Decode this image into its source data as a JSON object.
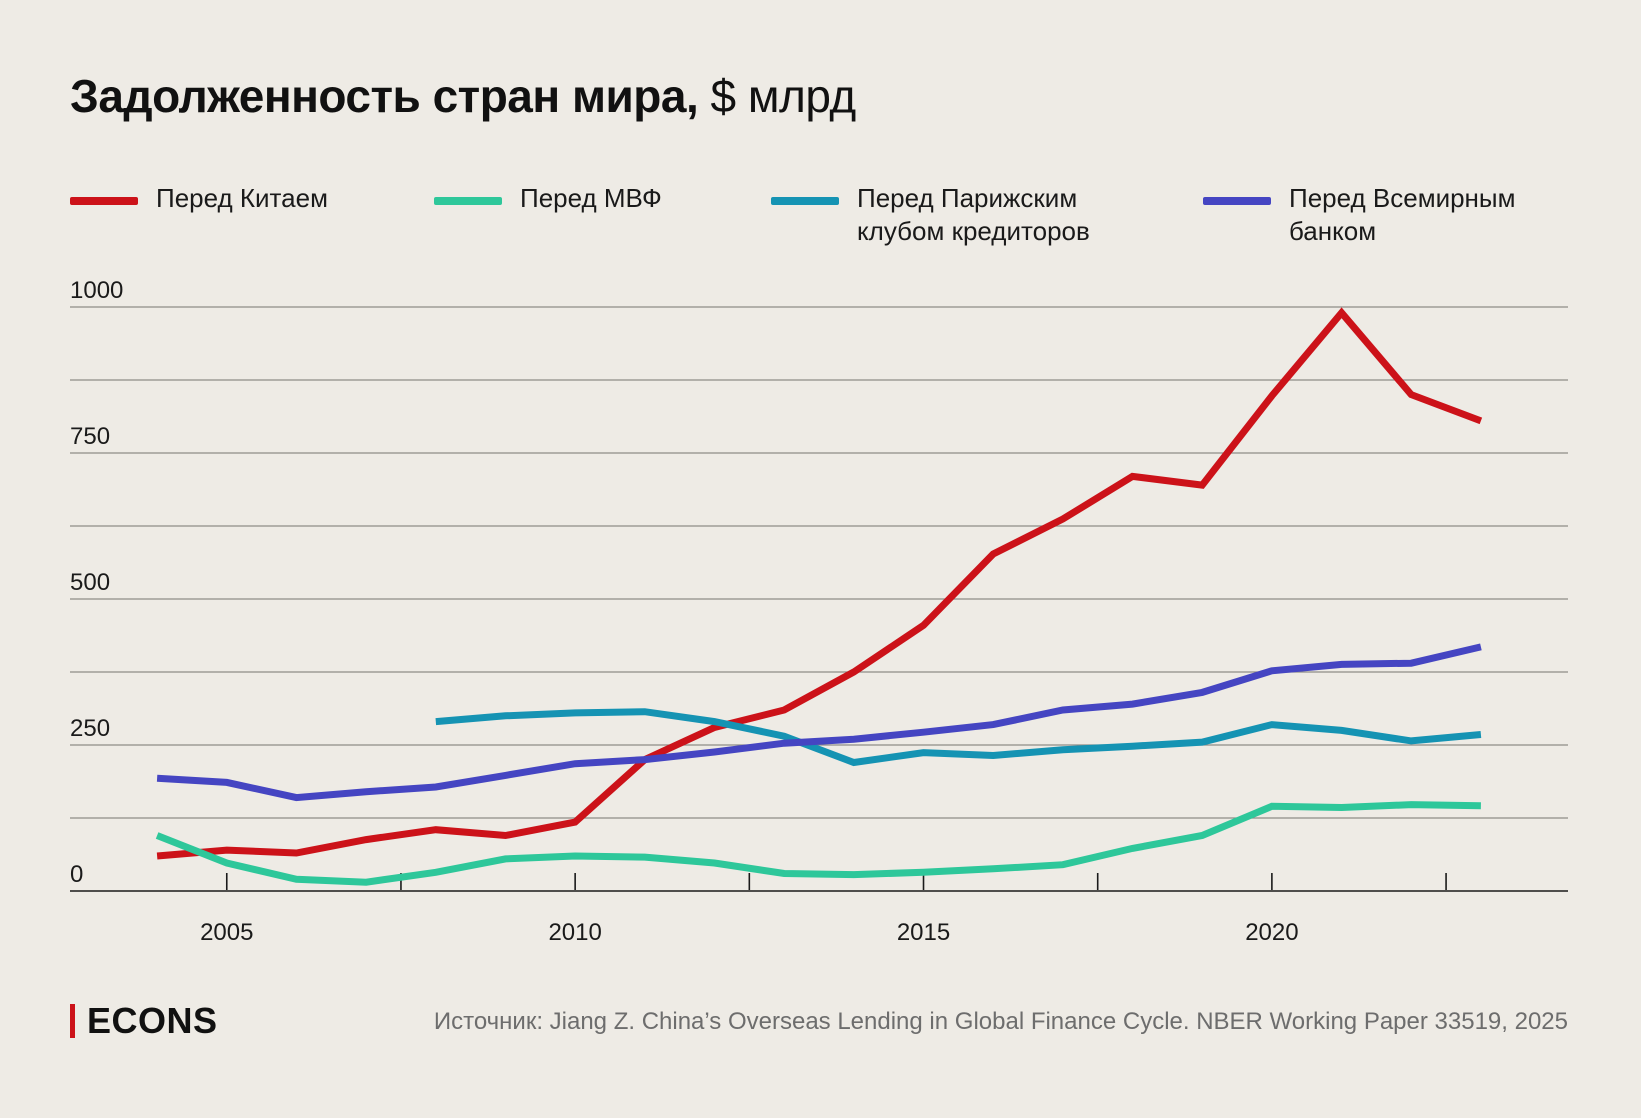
{
  "title": {
    "bold": "Задолженность стран мира,",
    "light": "$ млрд"
  },
  "legend": [
    {
      "label": "Перед Китаем",
      "color": "#cc1219"
    },
    {
      "label": "Перед МВФ",
      "color": "#2ec79a"
    },
    {
      "label": "Перед Парижским\nклубом кредиторов",
      "color": "#1593b3"
    },
    {
      "label": "Перед Всемирным\nбанком",
      "color": "#4545c2"
    }
  ],
  "chart_data": {
    "type": "line",
    "title": "Задолженность стран мира, $ млрд",
    "xlabel": "",
    "ylabel": "",
    "xlim": [
      2002.75,
      2024.25
    ],
    "ylim": [
      0,
      1000
    ],
    "yticks": [
      0,
      250,
      500,
      750,
      1000
    ],
    "ytick_labels": [
      "0",
      "250",
      "500",
      "750",
      "1000"
    ],
    "xticks_labeled": [
      2005,
      2010,
      2015,
      2020
    ],
    "xticks_labels": [
      "2005",
      "2010",
      "2015",
      "2020"
    ],
    "xticks_minor": [
      2007.5,
      2012.5,
      2017.5,
      2022.5
    ],
    "grid": true,
    "legend_position": "top",
    "series": [
      {
        "name": "Перед Китаем",
        "color": "#cc1219",
        "x": [
          2004,
          2005,
          2006,
          2007,
          2008,
          2009,
          2010,
          2011,
          2012,
          2013,
          2014,
          2015,
          2016,
          2017,
          2018,
          2019,
          2020,
          2021,
          2022,
          2023
        ],
        "values": [
          60,
          70,
          65,
          88,
          105,
          95,
          118,
          225,
          280,
          310,
          375,
          455,
          577,
          637,
          710,
          695,
          848,
          990,
          850,
          805
        ]
      },
      {
        "name": "Перед МВФ",
        "color": "#2ec79a",
        "x": [
          2004,
          2005,
          2006,
          2007,
          2008,
          2009,
          2010,
          2011,
          2012,
          2013,
          2014,
          2015,
          2016,
          2017,
          2018,
          2019,
          2020,
          2021,
          2022,
          2023
        ],
        "values": [
          95,
          48,
          20,
          15,
          32,
          55,
          60,
          58,
          48,
          30,
          28,
          32,
          38,
          45,
          73,
          95,
          145,
          143,
          148,
          146
        ]
      },
      {
        "name": "Перед Парижским клубом кредиторов",
        "color": "#1593b3",
        "x": [
          2008,
          2009,
          2010,
          2011,
          2012,
          2013,
          2014,
          2015,
          2016,
          2017,
          2018,
          2019,
          2020,
          2021,
          2022,
          2023
        ],
        "values": [
          290,
          300,
          305,
          307,
          290,
          265,
          220,
          237,
          232,
          242,
          248,
          255,
          285,
          275,
          257,
          268
        ]
      },
      {
        "name": "Перед Всемирным банком",
        "color": "#4545c2",
        "x": [
          2004,
          2005,
          2006,
          2007,
          2008,
          2009,
          2010,
          2011,
          2012,
          2013,
          2014,
          2015,
          2016,
          2017,
          2018,
          2019,
          2020,
          2021,
          2022,
          2023
        ],
        "values": [
          193,
          186,
          160,
          170,
          178,
          198,
          218,
          225,
          238,
          253,
          260,
          272,
          285,
          310,
          320,
          340,
          377,
          388,
          390,
          418
        ]
      }
    ]
  },
  "logo": {
    "text": "ECONS"
  },
  "source": "Источник: Jiang Z. China’s Overseas Lending in Global Finance Cycle. NBER Working Paper 33519, 2025"
}
